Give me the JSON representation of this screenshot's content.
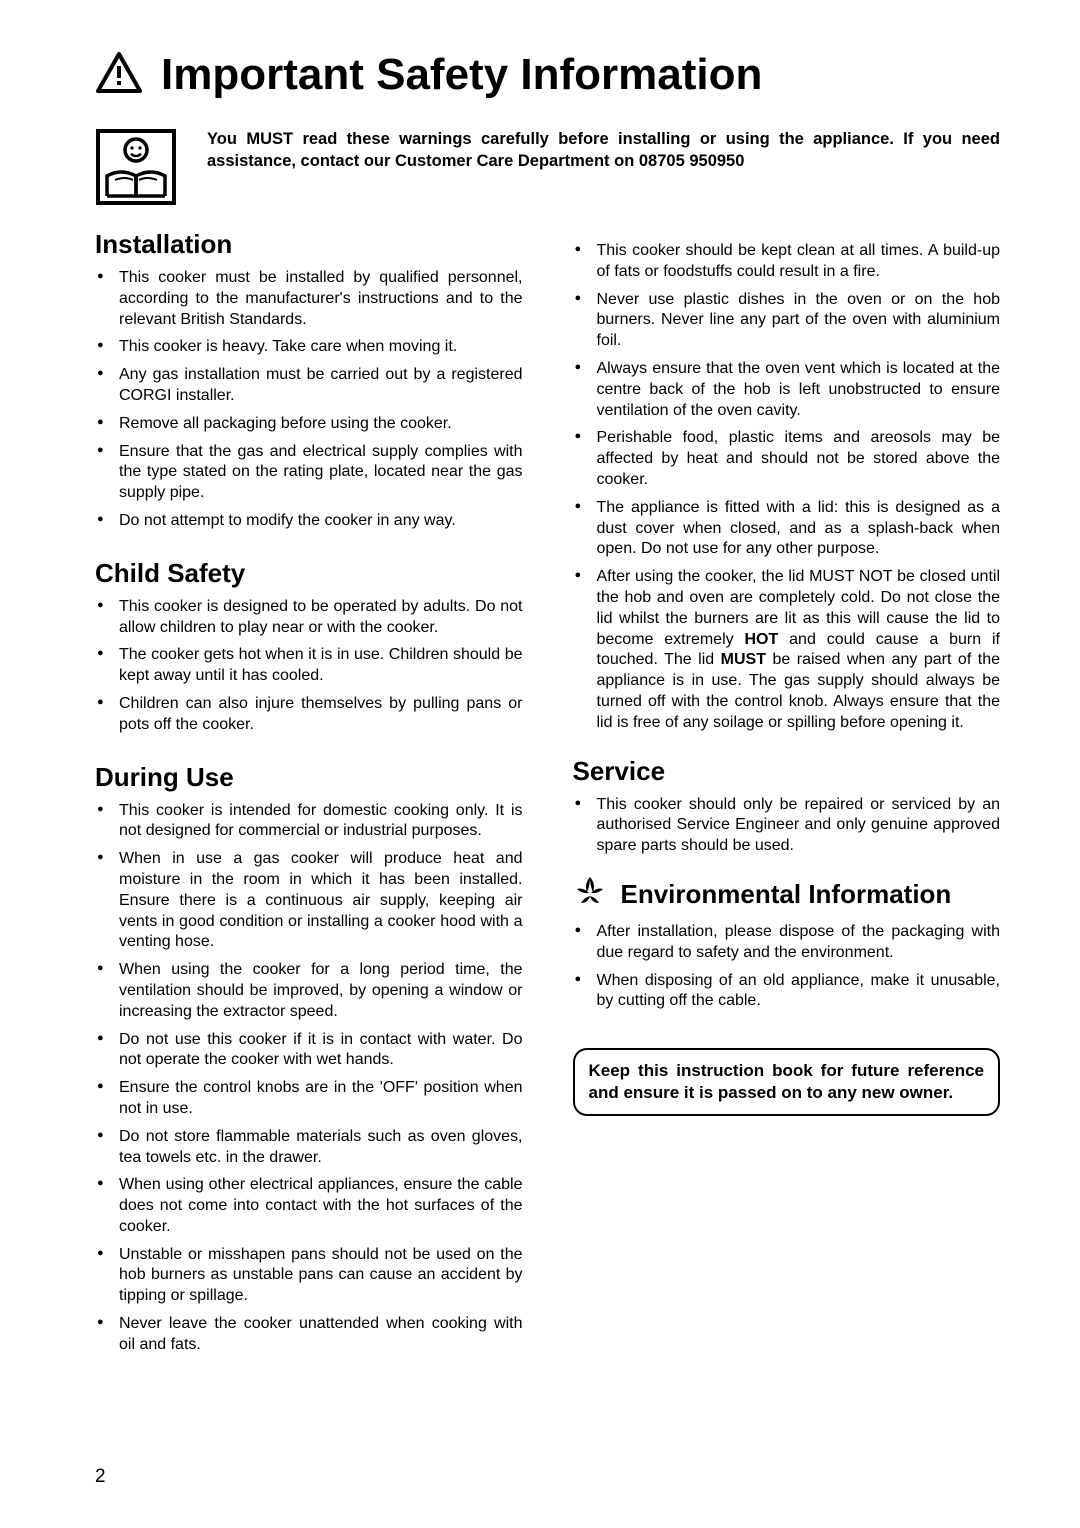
{
  "title": "Important Safety Information",
  "intro": "You MUST read these warnings carefully before installing or using the appliance. If you need assistance, contact our Customer Care Department on 08705 950950",
  "sections": {
    "installation": {
      "heading": "Installation",
      "items": [
        "This cooker must be installed by qualified personnel, according to the manufacturer's instructions and to the relevant British Standards.",
        "This cooker is heavy. Take care when moving it.",
        "Any gas installation must be carried out by a registered CORGI installer.",
        "Remove all packaging before using the cooker.",
        "Ensure that the gas and electrical supply complies with the type stated on the rating plate, located near the gas supply pipe.",
        "Do not attempt to modify the cooker in any way."
      ]
    },
    "child_safety": {
      "heading": "Child Safety",
      "items": [
        "This cooker is designed to be operated by adults. Do not allow children to play near or with the cooker.",
        "The cooker gets hot when it is in use. Children should be kept away until it has cooled.",
        "Children can also injure themselves by pulling pans or pots off the cooker."
      ]
    },
    "during_use": {
      "heading": "During Use",
      "items_left": [
        "This cooker is intended for domestic cooking only. It is not designed for commercial or industrial purposes.",
        "When in use a gas cooker will produce heat and moisture in the room in which it has been installed. Ensure there is a continuous air supply, keeping air vents in good condition or installing a cooker hood with a venting hose.",
        "When using the cooker for a long period time, the ventilation should be improved, by opening a window or increasing the extractor speed.",
        "Do not use this cooker if it is in contact with water. Do not operate the cooker with wet hands.",
        "Ensure the control knobs are in the 'OFF' position when not in use.",
        "Do not store flammable materials such as oven gloves, tea towels etc. in the drawer.",
        "When using other electrical appliances, ensure the cable does not come into contact with the hot surfaces of the cooker.",
        "Unstable or misshapen pans should not be used on the hob burners as unstable pans can cause an accident by tipping or spillage.",
        "Never leave the cooker unattended when cooking with oil and fats."
      ],
      "items_right": [
        "This cooker should be kept clean at all times. A build-up of fats or foodstuffs could result in a fire.",
        "Never use plastic dishes in the oven or on the hob burners. Never line any part of the oven with aluminium foil.",
        "Always ensure that the oven vent which is located at the centre back of the hob is left unobstructed to ensure ventilation of the oven cavity.",
        "Perishable food, plastic items and areosols may be affected by heat and should not be stored above the cooker.",
        "The appliance is fitted with a lid: this is designed as a dust cover when closed, and as a splash-back when open. Do not use for any other purpose."
      ],
      "lid_warning": "After using the cooker, the lid MUST NOT be closed until the hob and oven are completely cold. Do not close the lid whilst the burners are lit as this will cause the lid to become extremely HOT and could cause a burn if touched. The lid MUST be raised when any part of the appliance is in use. The gas supply should always be turned off with the control knob. Always ensure that the lid is free of any soilage or spilling before opening it."
    },
    "service": {
      "heading": "Service",
      "items": [
        "This cooker should only be repaired or serviced by an authorised Service Engineer and only genuine approved spare parts should be used."
      ]
    },
    "environmental": {
      "heading": "Environmental Information",
      "items": [
        "After installation, please dispose of the packaging with due regard to safety and the environment.",
        "When disposing of an old appliance, make it unusable, by cutting off the cable."
      ]
    }
  },
  "keep_notice": "Keep this instruction book for future reference and ensure it is passed on to any new owner.",
  "page_number": "2",
  "colors": {
    "text": "#000000",
    "background": "#ffffff"
  }
}
